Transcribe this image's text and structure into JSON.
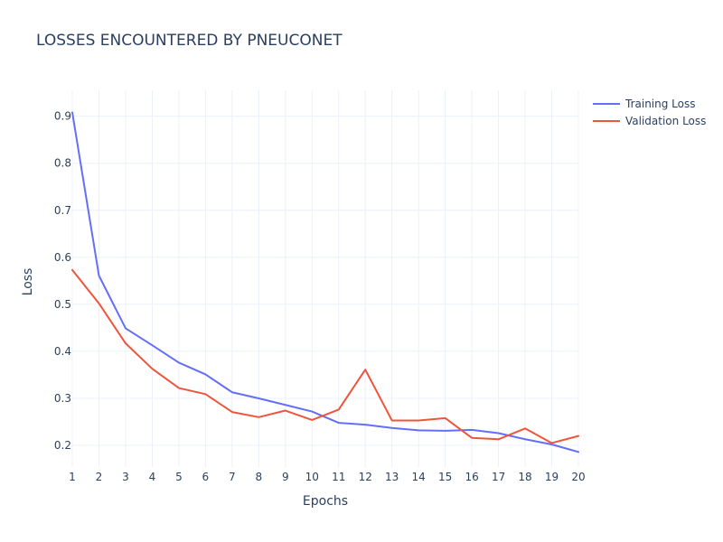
{
  "chart_data": {
    "type": "line",
    "title": "LOSSES ENCOUNTERED BY PNEUCONET",
    "xlabel": "Epochs",
    "ylabel": "Loss",
    "x": [
      1,
      2,
      3,
      4,
      5,
      6,
      7,
      8,
      9,
      10,
      11,
      12,
      13,
      14,
      15,
      16,
      17,
      18,
      19,
      20
    ],
    "x_ticks": [
      "1",
      "2",
      "3",
      "4",
      "5",
      "6",
      "7",
      "8",
      "9",
      "10",
      "11",
      "12",
      "13",
      "14",
      "15",
      "16",
      "17",
      "18",
      "19",
      "20"
    ],
    "y_ticks": [
      "0.2",
      "0.3",
      "0.4",
      "0.5",
      "0.6",
      "0.7",
      "0.8",
      "0.9"
    ],
    "xlim": [
      1,
      20
    ],
    "ylim": [
      0.154,
      0.955
    ],
    "grid": true,
    "legend_position": "top-right",
    "series": [
      {
        "name": "Training Loss",
        "color": "#636efa",
        "values": [
          0.908,
          0.561,
          0.449,
          0.413,
          0.376,
          0.351,
          0.313,
          0.3,
          0.286,
          0.272,
          0.248,
          0.244,
          0.237,
          0.232,
          0.231,
          0.233,
          0.226,
          0.213,
          0.202,
          0.186
        ]
      },
      {
        "name": "Validation Loss",
        "color": "#ef553b",
        "values": [
          0.573,
          0.502,
          0.417,
          0.363,
          0.322,
          0.309,
          0.271,
          0.26,
          0.274,
          0.254,
          0.276,
          0.361,
          0.253,
          0.253,
          0.258,
          0.216,
          0.213,
          0.236,
          0.205,
          0.22
        ]
      }
    ]
  }
}
